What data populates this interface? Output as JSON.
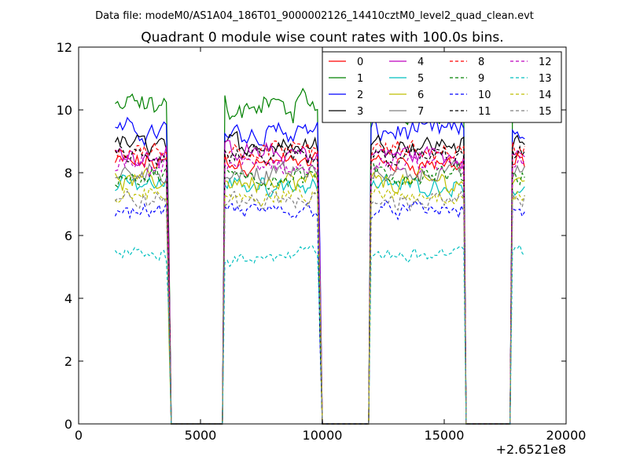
{
  "chart_data": {
    "type": "line",
    "suptitle": "Data file: modeM0/AS1A04_186T01_9000002126_14410cztM0_level2_quad_clean.evt",
    "title": "Quadrant 0 module wise count rates with 100.0s bins.",
    "xlabel": "",
    "ylabel": "",
    "xlim": [
      0,
      20000
    ],
    "ylim": [
      0,
      12
    ],
    "x_offset_label": "+2.6521e8",
    "x_ticks": [
      0,
      5000,
      10000,
      15000,
      20000
    ],
    "x_tick_labels": [
      "0",
      "5000",
      "10000",
      "15000",
      "20000"
    ],
    "y_ticks": [
      0,
      2,
      4,
      6,
      8,
      10,
      12
    ],
    "y_tick_labels": [
      "0",
      "2",
      "4",
      "6",
      "8",
      "10",
      "12"
    ],
    "grid": false,
    "legend_position": "top-right",
    "legend_columns": 4,
    "x_start": 1500,
    "x_step": 100,
    "n_points": 169,
    "active_segments": [
      [
        1500,
        3600
      ],
      [
        6000,
        9800
      ],
      [
        12000,
        15800
      ],
      [
        17800,
        18300
      ]
    ],
    "zero_segments": [
      [
        3800,
        5900
      ],
      [
        10000,
        11900
      ],
      [
        15900,
        17700
      ]
    ],
    "series": [
      {
        "name": "0",
        "color": "#ff0000",
        "dashed": false,
        "level": 8.3,
        "noise": 0.45
      },
      {
        "name": "1",
        "color": "#008000",
        "dashed": false,
        "level": 10.1,
        "noise": 0.6
      },
      {
        "name": "2",
        "color": "#0000ff",
        "dashed": false,
        "level": 9.3,
        "noise": 0.5
      },
      {
        "name": "3",
        "color": "#000000",
        "dashed": false,
        "level": 8.9,
        "noise": 0.45
      },
      {
        "name": "4",
        "color": "#bf00bf",
        "dashed": false,
        "level": 8.6,
        "noise": 0.45
      },
      {
        "name": "5",
        "color": "#00bfbf",
        "dashed": false,
        "level": 7.6,
        "noise": 0.4
      },
      {
        "name": "6",
        "color": "#bfbf00",
        "dashed": false,
        "level": 7.7,
        "noise": 0.45
      },
      {
        "name": "7",
        "color": "#808080",
        "dashed": false,
        "level": 8.0,
        "noise": 0.4
      },
      {
        "name": "8",
        "color": "#ff0000",
        "dashed": true,
        "level": 8.7,
        "noise": 0.45
      },
      {
        "name": "9",
        "color": "#008000",
        "dashed": true,
        "level": 7.9,
        "noise": 0.45
      },
      {
        "name": "10",
        "color": "#0000ff",
        "dashed": true,
        "level": 6.8,
        "noise": 0.35
      },
      {
        "name": "11",
        "color": "#000000",
        "dashed": true,
        "level": 8.5,
        "noise": 0.45
      },
      {
        "name": "12",
        "color": "#bf00bf",
        "dashed": true,
        "level": 8.2,
        "noise": 0.45
      },
      {
        "name": "13",
        "color": "#00bfbf",
        "dashed": true,
        "level": 5.4,
        "noise": 0.4
      },
      {
        "name": "14",
        "color": "#bfbf00",
        "dashed": true,
        "level": 7.3,
        "noise": 0.4
      },
      {
        "name": "15",
        "color": "#808080",
        "dashed": true,
        "level": 7.1,
        "noise": 0.4
      }
    ]
  }
}
